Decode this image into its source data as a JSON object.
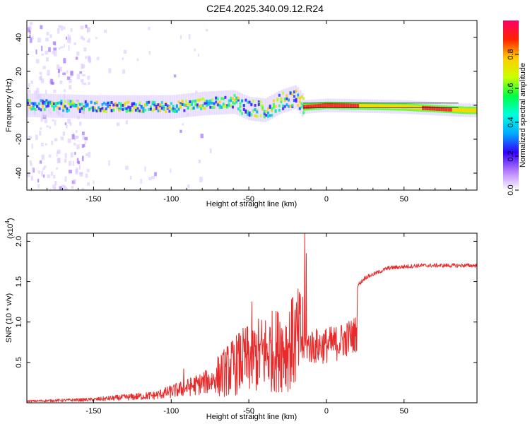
{
  "title": "C2E4.2025.340.09.12.R24",
  "spectrogram": {
    "type": "heatmap",
    "xlabel": "Height of straight line (km)",
    "ylabel": "Frequency (Hz)",
    "xlim": [
      -193,
      97
    ],
    "ylim": [
      -50,
      50
    ],
    "xticks": [
      -150,
      -100,
      -50,
      0,
      50
    ],
    "yticks": [
      -40,
      -20,
      0,
      20,
      40
    ],
    "ridge": [
      {
        "x": -190,
        "f": 0
      },
      {
        "x": -150,
        "f": -1
      },
      {
        "x": -100,
        "f": -1
      },
      {
        "x": -80,
        "f": 1
      },
      {
        "x": -60,
        "f": 2
      },
      {
        "x": -50,
        "f": -2
      },
      {
        "x": -40,
        "f": -3
      },
      {
        "x": -30,
        "f": 2
      },
      {
        "x": -20,
        "f": 5
      },
      {
        "x": -15,
        "f": -1
      },
      {
        "x": 0,
        "f": 0
      },
      {
        "x": 50,
        "f": -1
      },
      {
        "x": 90,
        "f": -3
      },
      {
        "x": 97,
        "f": -3
      }
    ]
  },
  "colorbar": {
    "label": "Normalized spectral amplitude",
    "ticks": [
      "0.0",
      "0.2",
      "0.4",
      "0.6",
      "0.8"
    ],
    "tick_values": [
      0.0,
      0.2,
      0.4,
      0.6,
      0.8
    ],
    "range": [
      0,
      1
    ],
    "colors": [
      "#ffffff",
      "#b57cff",
      "#3300ff",
      "#00aaff",
      "#00ffdd",
      "#00ff44",
      "#ccff00",
      "#ffcc00",
      "#ff2200",
      "#ff0066"
    ]
  },
  "snr": {
    "type": "line",
    "xlabel": "Height of straight line (km)",
    "ylabel": "SNR (10 * v/v)",
    "scale_label": "(x10",
    "scale_exp": "4",
    "scale_close": ")",
    "xlim": [
      -193,
      97
    ],
    "ylim": [
      0,
      2.1
    ],
    "xticks": [
      -150,
      -100,
      -50,
      0,
      50
    ],
    "yticks": [
      "0.5",
      "1.0",
      "1.5",
      "2.0"
    ],
    "ytick_values": [
      0.5,
      1.0,
      1.5,
      2.0
    ],
    "line_color": "#e82a2a",
    "envelope": [
      {
        "x": -193,
        "y": 0.03
      },
      {
        "x": -150,
        "y": 0.06
      },
      {
        "x": -110,
        "y": 0.14
      },
      {
        "x": -90,
        "y": 0.28
      },
      {
        "x": -70,
        "y": 0.45
      },
      {
        "x": -55,
        "y": 0.7
      },
      {
        "x": -40,
        "y": 0.85
      },
      {
        "x": -25,
        "y": 0.95
      },
      {
        "x": -15,
        "y": 1.15
      },
      {
        "x": -5,
        "y": 1.15
      },
      {
        "x": 5,
        "y": 1.2
      },
      {
        "x": 15,
        "y": 1.35
      },
      {
        "x": 25,
        "y": 1.55
      },
      {
        "x": 40,
        "y": 1.67
      },
      {
        "x": 60,
        "y": 1.7
      },
      {
        "x": 97,
        "y": 1.7
      }
    ],
    "spikes": [
      {
        "x": -14,
        "y": 2.1
      },
      {
        "x": -48,
        "y": 1.25
      },
      {
        "x": -22,
        "y": 1.3
      },
      {
        "x": -13,
        "y": 1.85
      },
      {
        "x": -92,
        "y": 0.42
      },
      {
        "x": -30,
        "y": 1.0
      },
      {
        "x": 12,
        "y": 0.6
      }
    ]
  }
}
